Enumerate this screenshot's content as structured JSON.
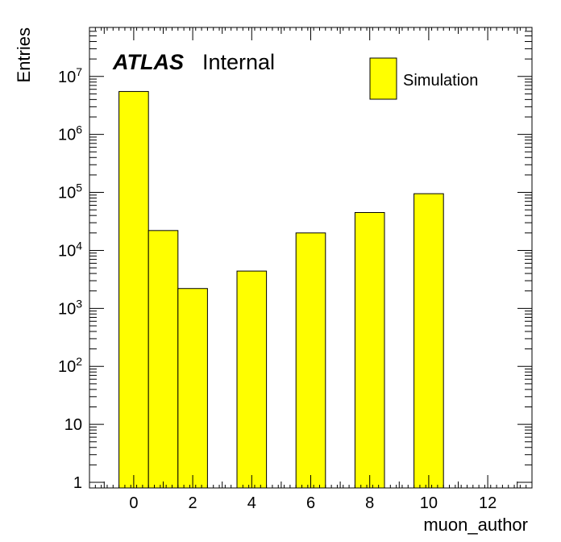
{
  "chart_data": {
    "type": "bar",
    "bin_width": 1,
    "bins": [
      {
        "x": 0,
        "value": 5500000
      },
      {
        "x": 1,
        "value": 22000
      },
      {
        "x": 2,
        "value": 2200
      },
      {
        "x": 3,
        "value": 0
      },
      {
        "x": 4,
        "value": 4400
      },
      {
        "x": 5,
        "value": 0
      },
      {
        "x": 6,
        "value": 20000
      },
      {
        "x": 7,
        "value": 0
      },
      {
        "x": 8,
        "value": 45000
      },
      {
        "x": 9,
        "value": 0
      },
      {
        "x": 10,
        "value": 95000
      },
      {
        "x": 11,
        "value": 0
      },
      {
        "x": 12,
        "value": 0
      }
    ],
    "xlim": [
      -1.5,
      13.5
    ],
    "ylim": [
      0.8,
      70000000
    ],
    "yscale": "log",
    "xticks": [
      "0",
      "2",
      "4",
      "6",
      "8",
      "10",
      "12"
    ],
    "yticks": [
      {
        "value": 1,
        "base": "1",
        "exp": ""
      },
      {
        "value": 10,
        "base": "10",
        "exp": ""
      },
      {
        "value": 100,
        "base": "10",
        "exp": "2"
      },
      {
        "value": 1000,
        "base": "10",
        "exp": "3"
      },
      {
        "value": 10000,
        "base": "10",
        "exp": "4"
      },
      {
        "value": 100000,
        "base": "10",
        "exp": "5"
      },
      {
        "value": 1000000,
        "base": "10",
        "exp": "6"
      },
      {
        "value": 10000000,
        "base": "10",
        "exp": "7"
      }
    ],
    "xlabel": "muon_author",
    "ylabel": "Entries",
    "annotation_bold": "ATLAS",
    "annotation_normal": "Internal",
    "legend": [
      {
        "name": "Simulation",
        "color": "#ffff00"
      }
    ],
    "legend_position": "top-right",
    "bar_color": "#ffff00",
    "edge_color": "#000000"
  }
}
